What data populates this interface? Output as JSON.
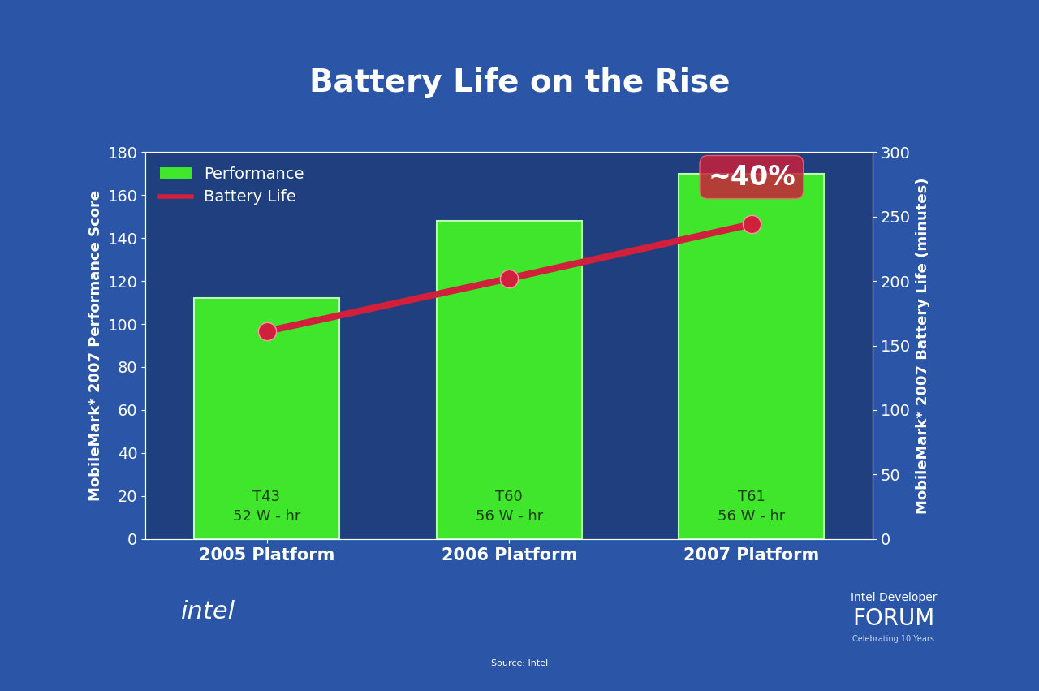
{
  "chart_data": {
    "type": "bar",
    "title": "Battery Life on the Rise",
    "categories": [
      "2005 Platform",
      "2006 Platform",
      "2007 Platform"
    ],
    "series": [
      {
        "name": "Performance",
        "type": "bar",
        "color": "#3fe62c",
        "values": [
          112,
          148,
          170
        ],
        "bar_texts": [
          "T43\n52 W - hr",
          "T60\n56 W - hr",
          "T61\n56 W - hr"
        ]
      },
      {
        "name": "Battery Life",
        "type": "line",
        "color": "#d0203c",
        "marker": "o",
        "axis": "y2",
        "values": [
          161,
          202,
          244
        ]
      }
    ],
    "y_label": "MobileMark* 2007 Performance Score",
    "y2_label": "MobileMark* 2007 Battery Life (minutes)",
    "ylim": [
      0,
      180
    ],
    "yticks": [
      0,
      20,
      40,
      60,
      80,
      100,
      120,
      140,
      160,
      180
    ],
    "y2lim": [
      0,
      300
    ],
    "y2ticks": [
      0,
      50,
      100,
      150,
      200,
      250,
      300
    ],
    "legend": "upper left",
    "annotations": [
      {
        "text": "~40%",
        "category": "2007 Platform",
        "series": "Battery Life"
      }
    ],
    "footer_texts": {
      "logo": "intel",
      "event_top": "Intel Developer",
      "event": "FORUM",
      "event_sub": "Celebrating 10 Years",
      "source": "Source: Intel"
    }
  }
}
